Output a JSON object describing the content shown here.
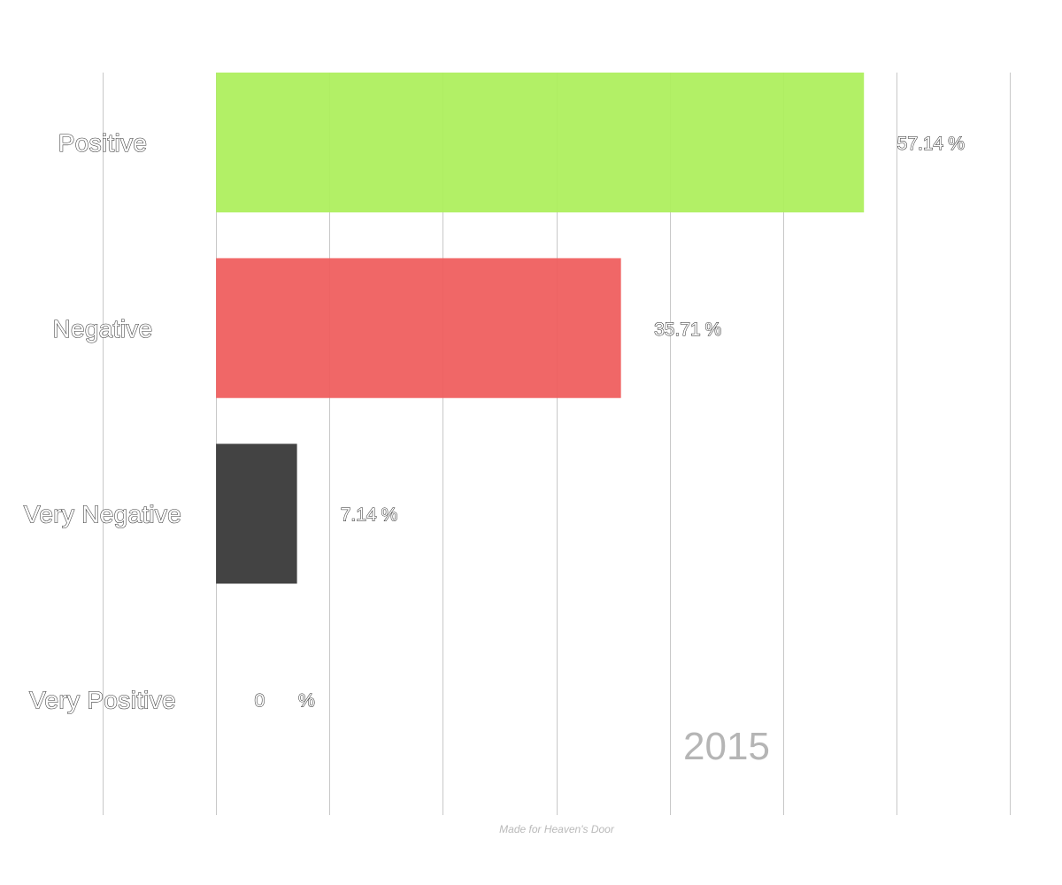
{
  "chart_data": {
    "type": "bar",
    "orientation": "horizontal",
    "categories": [
      "Positive",
      "Negative",
      "Very Negative",
      "Very Positive"
    ],
    "values": [
      57.14,
      35.71,
      7.14,
      0
    ],
    "value_labels": [
      "57.14",
      "35.71",
      "7.14",
      "0"
    ],
    "unit": "%",
    "colors": [
      "#aeef5e",
      "#ef5f5f",
      "#393939",
      "#cccccc"
    ],
    "xlim": [
      -10,
      70
    ],
    "grid": true,
    "period_label": "2015",
    "credit": "Made for Heaven's Door"
  }
}
